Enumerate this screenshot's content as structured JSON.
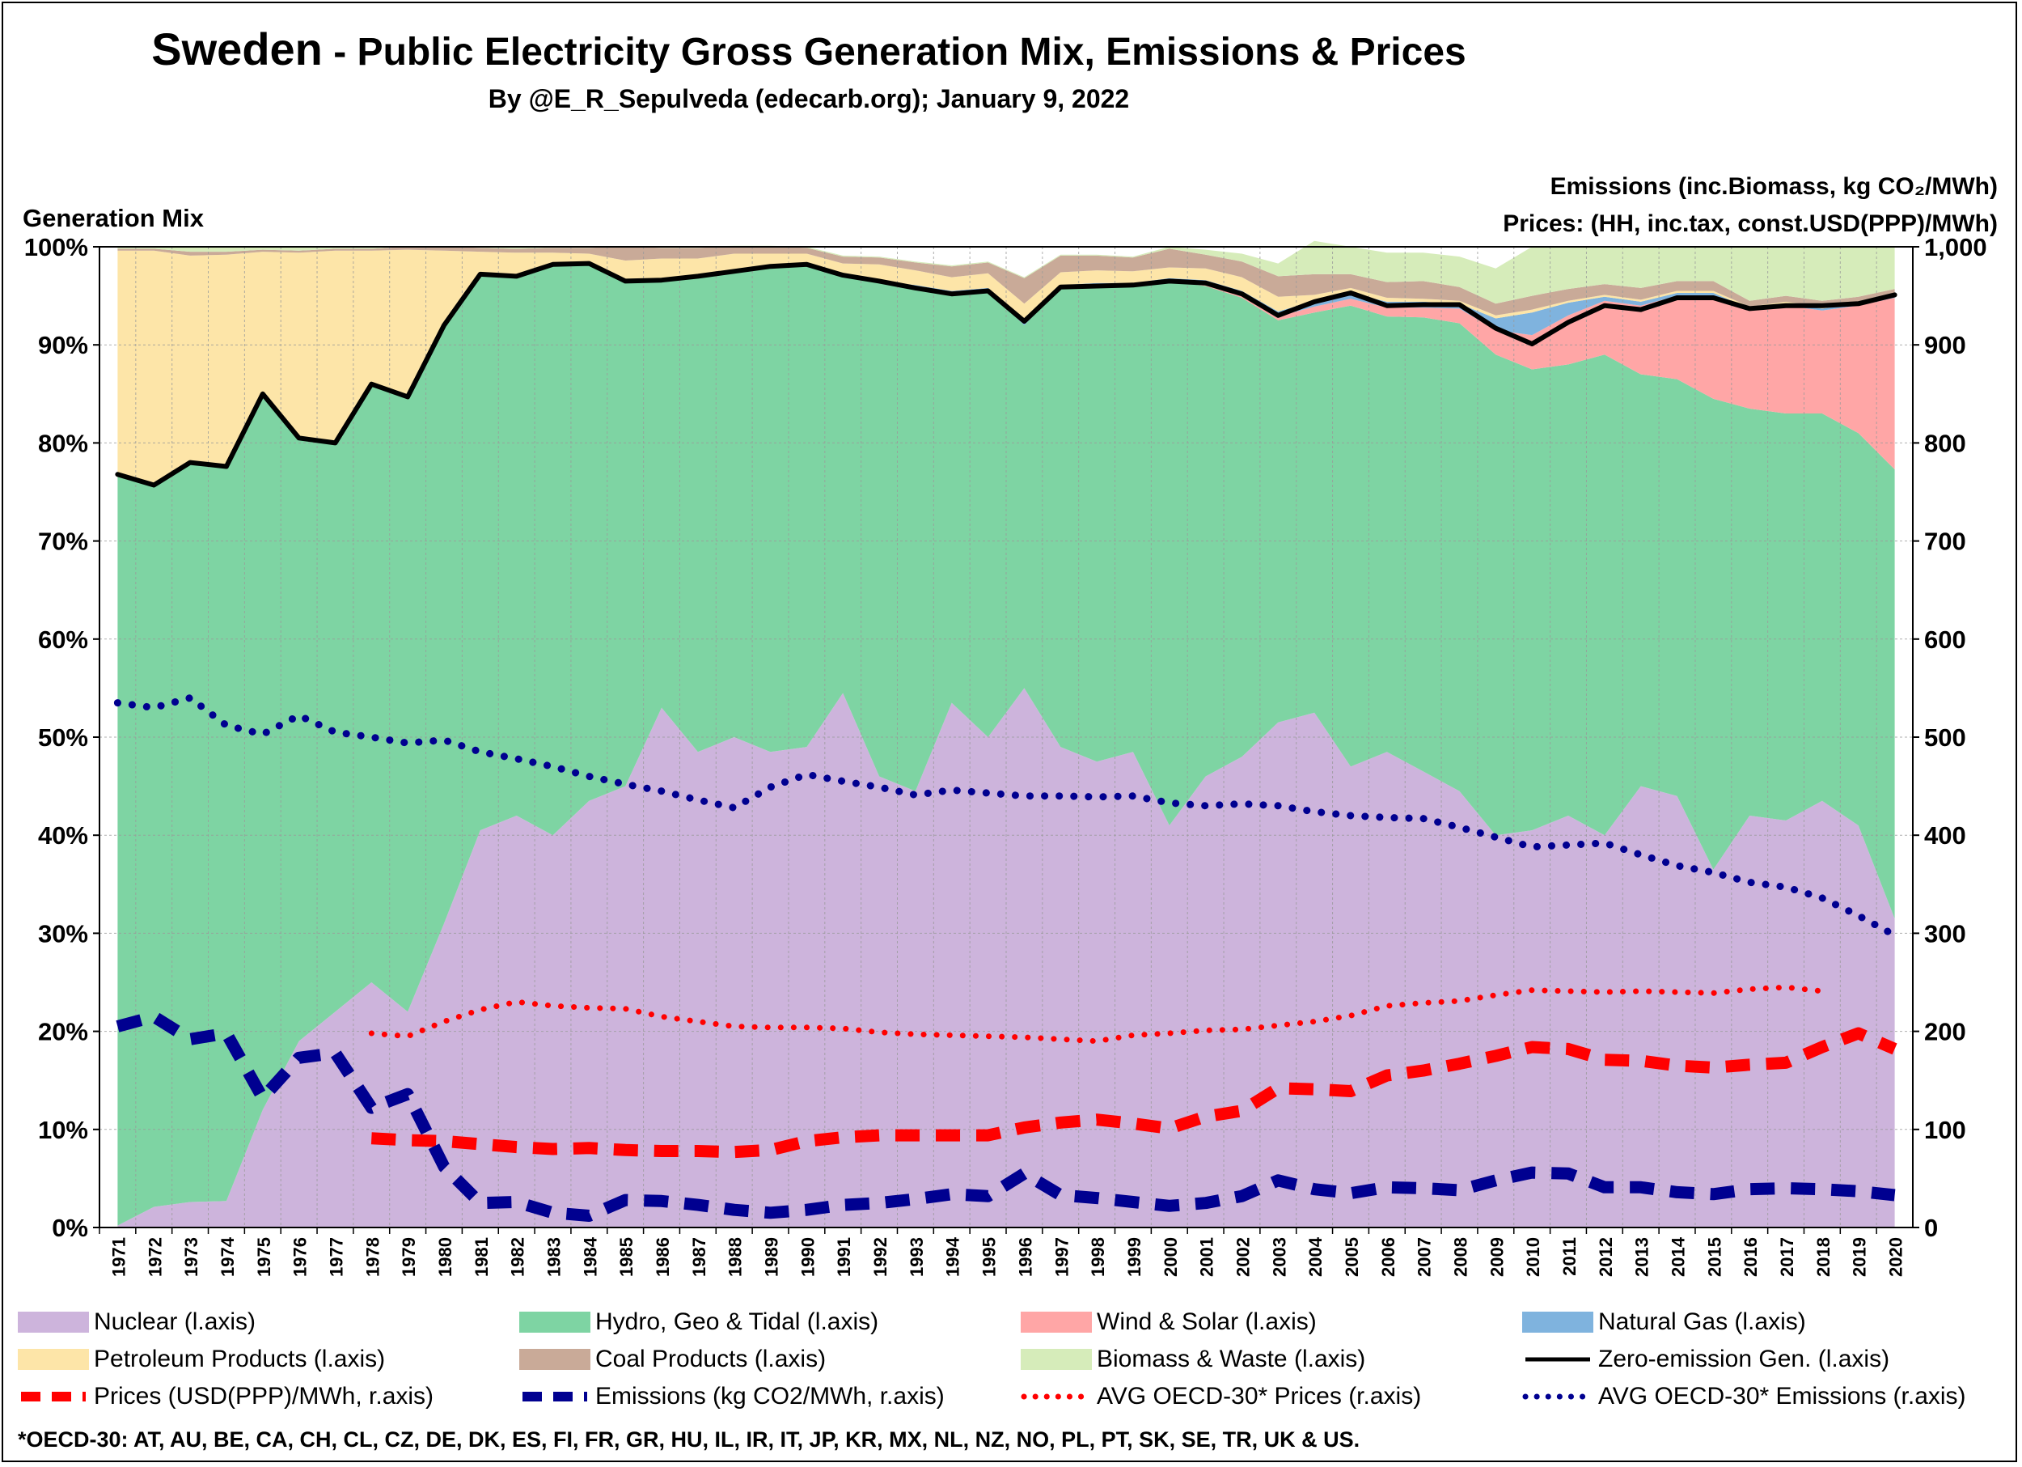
{
  "title_main": "Sweden",
  "title_rest": " - Public Electricity Gross Generation Mix, Emissions & Prices",
  "byline": "By @E_R_Sepulveda (edecarb.org); January 9, 2022",
  "left_axis_title": "Generation Mix",
  "right_axis_title_emissions": "Emissions (inc.Biomass, kg CO₂/MWh)",
  "right_axis_title_prices": "Prices: (HH, inc.tax, const.USD(PPP)/MWh)",
  "footnote": "*OECD-30: AT, AU, BE, CA, CH, CL, CZ, DE, DK, ES, FI, FR, GR, HU, IL, IR, IT, JP, KR, MX, NL, NZ, NO, PL, PT, SK, SE, TR, UK & US.",
  "colors": {
    "nuclear": "#cdb4dc",
    "hydro": "#7ed4a3",
    "wind_solar": "#ffa6a6",
    "natural_gas": "#7fb3de",
    "petroleum": "#fde5a8",
    "coal": "#c9aa98",
    "biomass": "#d6ecba",
    "zero_emission": "#000000",
    "prices": "#ff0000",
    "emissions": "#000090",
    "avg_prices": "#ff0000",
    "avg_emissions": "#000090",
    "gridline": "#9a9a9a"
  },
  "legend": [
    {
      "key": "nuclear",
      "label": "Nuclear (l.axis)",
      "kind": "area"
    },
    {
      "key": "hydro",
      "label": "Hydro, Geo & Tidal (l.axis)",
      "kind": "area"
    },
    {
      "key": "wind_solar",
      "label": "Wind & Solar (l.axis)",
      "kind": "area"
    },
    {
      "key": "natural_gas",
      "label": "Natural Gas (l.axis)",
      "kind": "area"
    },
    {
      "key": "petroleum",
      "label": "Petroleum Products (l.axis)",
      "kind": "area"
    },
    {
      "key": "coal",
      "label": "Coal Products (l.axis)",
      "kind": "area"
    },
    {
      "key": "biomass",
      "label": "Biomass & Waste (l.axis)",
      "kind": "area"
    },
    {
      "key": "zero_emission",
      "label": "Zero-emission Gen. (l.axis)",
      "kind": "solid"
    },
    {
      "key": "prices",
      "label": "Prices (USD(PPP)/MWh, r.axis)",
      "kind": "dash"
    },
    {
      "key": "emissions",
      "label": "Emissions (kg CO2/MWh, r.axis)",
      "kind": "dash"
    },
    {
      "key": "avg_prices",
      "label": "AVG OECD-30* Prices (r.axis)",
      "kind": "dot"
    },
    {
      "key": "avg_emissions",
      "label": "AVG OECD-30* Emissions (r.axis)",
      "kind": "dot"
    }
  ],
  "chart_data": {
    "type": "area",
    "x": [
      "1971",
      "1972",
      "1973",
      "1974",
      "1975",
      "1976",
      "1977",
      "1978",
      "1979",
      "1980",
      "1981",
      "1982",
      "1983",
      "1984",
      "1985",
      "1986",
      "1987",
      "1988",
      "1989",
      "1990",
      "1991",
      "1992",
      "1993",
      "1994",
      "1995",
      "1996",
      "1997",
      "1998",
      "1999",
      "2000",
      "2001",
      "2002",
      "2003",
      "2004",
      "2005",
      "2006",
      "2007",
      "2008",
      "2009",
      "2010",
      "2011",
      "2012",
      "2013",
      "2014",
      "2015",
      "2016",
      "2017",
      "2018",
      "2019",
      "2020"
    ],
    "left_axis": {
      "label": "Generation Mix",
      "ticks": [
        "0%",
        "10%",
        "20%",
        "30%",
        "40%",
        "50%",
        "60%",
        "70%",
        "80%",
        "90%",
        "100%"
      ],
      "ylim": [
        0,
        100
      ],
      "unit": "%"
    },
    "right_axis": {
      "ticks": [
        "0",
        "100",
        "200",
        "300",
        "400",
        "500",
        "600",
        "700",
        "800",
        "900",
        "1,000"
      ],
      "ylim": [
        0,
        1000
      ]
    },
    "grid": "vertical and horizontal",
    "legend_position": "bottom",
    "stacked_series": [
      {
        "name": "Nuclear (l.axis)",
        "key": "nuclear",
        "values": [
          0.2,
          2.1,
          2.6,
          2.7,
          12.0,
          19.0,
          22.0,
          25.0,
          22.0,
          31.0,
          40.5,
          42.0,
          40.0,
          43.5,
          45.0,
          53.0,
          48.5,
          50.0,
          48.5,
          49.0,
          54.5,
          46.0,
          44.5,
          53.5,
          50.0,
          55.0,
          49.0,
          47.5,
          48.5,
          41.0,
          46.0,
          48.0,
          51.5,
          52.5,
          47.0,
          48.5,
          46.5,
          44.5,
          40.0,
          40.5,
          42.0,
          40.0,
          45.0,
          44.0,
          36.5,
          42.0,
          41.5,
          43.5,
          41.0,
          31.5
        ]
      },
      {
        "name": "Hydro, Geo & Tidal (l.axis)",
        "key": "hydro",
        "values": [
          76.6,
          73.6,
          75.4,
          74.9,
          73.0,
          61.5,
          58.0,
          61.0,
          62.7,
          61.0,
          56.7,
          55.0,
          58.2,
          54.8,
          51.5,
          43.5,
          48.5,
          47.5,
          49.5,
          49.2,
          42.5,
          50.5,
          51.3,
          41.7,
          45.5,
          37.0,
          46.8,
          48.5,
          47.5,
          55.5,
          50.0,
          46.8,
          41.0,
          40.8,
          47.0,
          44.4,
          46.3,
          47.7,
          49.0,
          47.0,
          46.0,
          49.0,
          42.0,
          42.5,
          48.0,
          41.5,
          41.5,
          39.5,
          40.0,
          45.8
        ]
      },
      {
        "name": "Wind & Solar (l.axis)",
        "key": "wind_solar",
        "values": [
          0,
          0,
          0,
          0,
          0,
          0,
          0,
          0,
          0,
          0,
          0,
          0,
          0,
          0,
          0,
          0,
          0,
          0,
          0,
          0,
          0,
          0,
          0,
          0,
          0,
          0,
          0,
          0,
          0,
          0,
          0.2,
          0.3,
          0.4,
          0.6,
          0.7,
          0.9,
          1.0,
          1.5,
          2.5,
          3.5,
          5.0,
          5.5,
          7.0,
          8.5,
          10.5,
          10.0,
          11.0,
          10.5,
          13.0,
          17.5
        ]
      },
      {
        "name": "Natural Gas (l.axis)",
        "key": "natural_gas",
        "values": [
          0,
          0,
          0,
          0,
          0,
          0,
          0,
          0,
          0,
          0,
          0,
          0,
          0,
          0,
          0,
          0,
          0,
          0,
          0,
          0,
          0,
          0,
          0.3,
          0.3,
          0.3,
          0.4,
          0.3,
          0.3,
          0.3,
          0.3,
          0.4,
          0.4,
          0.5,
          0.6,
          0.6,
          0.6,
          0.6,
          0.5,
          1.2,
          2.3,
          1.3,
          0.4,
          0.4,
          0.3,
          0.3,
          0.2,
          0.2,
          0.2,
          0.2,
          0.2
        ]
      },
      {
        "name": "Petroleum Products (l.axis)",
        "key": "petroleum",
        "values": [
          22.8,
          23.9,
          21.1,
          21.6,
          14.5,
          18.9,
          19.6,
          13.6,
          15.0,
          7.6,
          2.3,
          2.4,
          1.2,
          1.0,
          2.1,
          2.3,
          1.8,
          1.8,
          1.3,
          1.1,
          1.3,
          1.7,
          1.5,
          1.4,
          1.5,
          1.8,
          1.3,
          1.3,
          1.2,
          1.1,
          1.2,
          1.4,
          1.5,
          0.6,
          0.5,
          0.4,
          0.3,
          0.3,
          0.3,
          0.3,
          0.2,
          0.2,
          0.2,
          0.2,
          0.2,
          0.2,
          0.2,
          0.2,
          0.2,
          0.2
        ]
      },
      {
        "name": "Coal Products (l.axis)",
        "key": "coal",
        "values": [
          0.2,
          0.2,
          0.4,
          0.3,
          0.2,
          0.2,
          0.2,
          0.2,
          0.3,
          0.4,
          0.4,
          0.4,
          0.5,
          0.6,
          1.4,
          1.1,
          1.1,
          0.7,
          0.7,
          0.6,
          0.7,
          0.7,
          0.8,
          1.1,
          1.1,
          2.6,
          1.7,
          1.5,
          1.4,
          1.9,
          1.4,
          1.6,
          2.1,
          2.1,
          1.4,
          1.6,
          1.8,
          1.4,
          1.2,
          1.4,
          1.2,
          1.1,
          1.2,
          1.0,
          1.0,
          0.6,
          0.6,
          0.6,
          0.5,
          0.5
        ]
      },
      {
        "name": "Biomass & Waste (l.axis)",
        "key": "biomass",
        "values": [
          0.2,
          0.2,
          0.5,
          0.5,
          0.3,
          0.4,
          0.2,
          0.2,
          0.0,
          0.0,
          0.1,
          0.2,
          0.1,
          0.1,
          0.0,
          0.1,
          0.1,
          0.1,
          0.1,
          0.1,
          0.1,
          0.1,
          0.1,
          0.1,
          0.1,
          0.1,
          0.1,
          0.1,
          0.1,
          0.2,
          0.5,
          0.8,
          1.3,
          3.4,
          2.8,
          3.0,
          2.9,
          3.1,
          3.6,
          5.0,
          4.3,
          3.8,
          4.2,
          3.5,
          3.5,
          5.5,
          5.0,
          5.5,
          5.1,
          4.3
        ]
      }
    ],
    "line_series": [
      {
        "name": "Zero-emission Gen. (l.axis)",
        "key": "zero_emission",
        "axis": "left",
        "values": [
          76.8,
          75.7,
          78.0,
          77.6,
          85.0,
          80.5,
          80.0,
          86.0,
          84.7,
          92.0,
          97.2,
          97.0,
          98.2,
          98.3,
          96.5,
          96.6,
          97.0,
          97.5,
          98.0,
          98.2,
          97.1,
          96.5,
          95.8,
          95.2,
          95.5,
          92.4,
          95.9,
          96.0,
          96.1,
          96.5,
          96.3,
          95.2,
          93.0,
          94.4,
          95.3,
          94.0,
          94.1,
          94.1,
          91.7,
          90.1,
          92.3,
          94.0,
          93.6,
          94.8,
          94.8,
          93.7,
          94.0,
          94.0,
          94.2,
          95.1
        ]
      },
      {
        "name": "Prices (USD(PPP)/MWh, r.axis)",
        "key": "prices",
        "axis": "right",
        "start_index": 7,
        "values": [
          91,
          89,
          88,
          85,
          82,
          80,
          81,
          79,
          78,
          78,
          77,
          79,
          88,
          92,
          94,
          94,
          94,
          94,
          102,
          107,
          110,
          106,
          101,
          113,
          119,
          142,
          141,
          139,
          155,
          160,
          167,
          175,
          184,
          182,
          171,
          170,
          165,
          163,
          166,
          168,
          184,
          198,
          182
        ]
      },
      {
        "name": "Emissions (kg CO2/MWh, r.axis)",
        "key": "emissions",
        "axis": "right",
        "values": [
          205,
          215,
          192,
          198,
          132,
          173,
          178,
          122,
          136,
          62,
          25,
          26,
          15,
          12,
          28,
          27,
          23,
          18,
          15,
          18,
          23,
          25,
          29,
          34,
          32,
          55,
          33,
          30,
          26,
          22,
          25,
          32,
          48,
          39,
          35,
          41,
          40,
          38,
          48,
          56,
          55,
          41,
          41,
          36,
          34,
          39,
          40,
          39,
          37,
          33
        ]
      },
      {
        "name": "AVG OECD-30* Prices (r.axis)",
        "key": "avg_prices",
        "axis": "right",
        "start_index": 7,
        "values": [
          198,
          195,
          210,
          222,
          230,
          226,
          224,
          223,
          215,
          210,
          205,
          204,
          204,
          203,
          199,
          197,
          196,
          195,
          194,
          192,
          190,
          196,
          198,
          201,
          202,
          206,
          210,
          216,
          226,
          229,
          231,
          237,
          242,
          241,
          240,
          241,
          240,
          239,
          243,
          245,
          241
        ]
      },
      {
        "name": "AVG OECD-30* Emissions (r.axis)",
        "key": "avg_emissions",
        "axis": "right",
        "values": [
          535,
          530,
          540,
          512,
          503,
          522,
          505,
          500,
          494,
          497,
          485,
          478,
          470,
          460,
          452,
          445,
          436,
          428,
          449,
          462,
          455,
          449,
          441,
          446,
          443,
          440,
          440,
          439,
          440,
          433,
          430,
          432,
          430,
          424,
          420,
          418,
          417,
          408,
          398,
          388,
          390,
          392,
          380,
          369,
          362,
          352,
          347,
          336,
          318,
          298
        ]
      }
    ]
  }
}
